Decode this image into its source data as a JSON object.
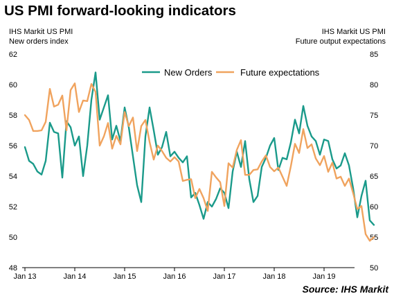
{
  "title": "US PMI forward-looking indicators",
  "left_caption": {
    "line1": "IHS Markit  US PMI",
    "line2": "New orders index"
  },
  "right_caption": {
    "line1": "IHS Markit  US PMI",
    "line2": "Future output expectations"
  },
  "source": "Source: IHS Markit",
  "colors": {
    "new_orders": "#1a9a8a",
    "future_expectations": "#f0a35e",
    "axis": "#000000"
  },
  "chart_data": {
    "type": "line",
    "x_tick_labels": [
      "Jan 13",
      "Jan 14",
      "Jan 15",
      "Jan 16",
      "Jan 17",
      "Jan 18",
      "Jan 19"
    ],
    "y_left": {
      "ylim": [
        48,
        62
      ],
      "ticks": [
        48,
        50,
        52,
        54,
        56,
        58,
        60,
        62
      ]
    },
    "y_right": {
      "ylim": [
        50,
        85
      ],
      "ticks": [
        50,
        55,
        60,
        65,
        70,
        75,
        80,
        85
      ]
    },
    "legend_position": "top-center",
    "series": [
      {
        "name": "New Orders",
        "axis": "left",
        "color": "#1a9a8a",
        "values": [
          55.9,
          55.0,
          54.8,
          54.3,
          54.1,
          55.0,
          57.5,
          56.9,
          56.8,
          53.9,
          57.6,
          57.2,
          56.0,
          56.6,
          54.0,
          56.0,
          59.0,
          60.8,
          57.7,
          58.5,
          59.3,
          56.4,
          57.3,
          56.3,
          58.5,
          57.2,
          55.3,
          53.4,
          52.3,
          56.6,
          58.5,
          57.0,
          55.4,
          55.9,
          56.9,
          55.3,
          55.6,
          55.2,
          54.9,
          55.3,
          52.6,
          52.9,
          52.1,
          51.2,
          52.3,
          52.0,
          52.5,
          53.2,
          52.9,
          51.9,
          54.3,
          55.6,
          54.6,
          56.3,
          53.8,
          52.3,
          52.7,
          54.6,
          55.2,
          56.0,
          56.5,
          54.4,
          55.2,
          55.1,
          56.2,
          57.7,
          56.8,
          58.6,
          57.3,
          56.6,
          56.3,
          55.4,
          56.4,
          56.3,
          55.1,
          54.5,
          54.7,
          55.5,
          54.7,
          53.2,
          51.3,
          52.7,
          53.7,
          51.1,
          50.8
        ],
        "x": "monthly index from Jan 13 (0) onward"
      },
      {
        "name": "Future expectations",
        "axis": "right",
        "color": "#f0a35e",
        "values": [
          75.0,
          74.2,
          72.4,
          72.4,
          72.5,
          73.9,
          79.3,
          76.4,
          76.7,
          78.2,
          72.5,
          79.1,
          80.2,
          75.5,
          77.4,
          77.3,
          80.1,
          78.8,
          70.0,
          71.5,
          73.7,
          69.5,
          71.6,
          70.2,
          75.5,
          73.2,
          74.6,
          69.1,
          73.2,
          74.2,
          70.6,
          67.7,
          70.0,
          69.1,
          68.0,
          67.4,
          68.1,
          67.4,
          64.2,
          64.4,
          64.5,
          61.4,
          62.9,
          61.4,
          59.3,
          65.7,
          64.8,
          64.0,
          60.1,
          67.1,
          66.4,
          69.3,
          70.9,
          65.2,
          65.2,
          66.0,
          66.1,
          67.4,
          68.4,
          66.5,
          65.8,
          66.4,
          64.9,
          63.4,
          66.6,
          70.3,
          68.8,
          72.7,
          69.6,
          70.2,
          67.9,
          66.8,
          68.3,
          65.7,
          67.2,
          64.6,
          64.9,
          63.4,
          64.6,
          62.2,
          59.6,
          60.1,
          55.5,
          54.4,
          55.0
        ],
        "x": "monthly index from Jan 13 (0) onward"
      }
    ]
  }
}
